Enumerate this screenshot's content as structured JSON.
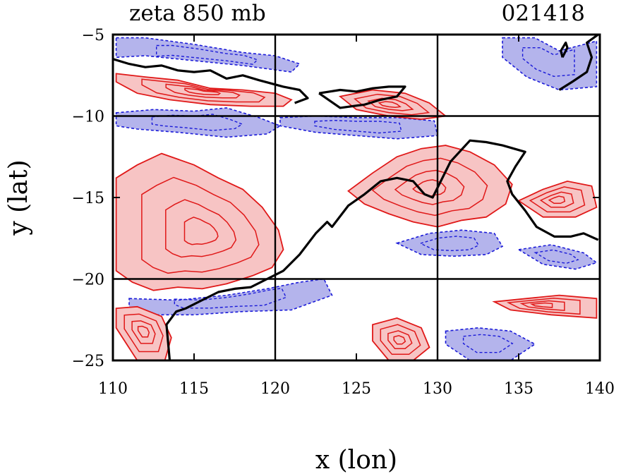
{
  "chart_data": {
    "type": "contour",
    "title": "zeta 850 mb",
    "time_label": "021418",
    "xlabel": "x (lon)",
    "ylabel": "y (lat)",
    "xlim": [
      110,
      140
    ],
    "ylim": [
      -25,
      -5
    ],
    "x_ticks": [
      "110",
      "115",
      "120",
      "125",
      "130",
      "135",
      "140"
    ],
    "y_ticks": [
      "-5",
      "-10",
      "-15",
      "-20",
      "-25"
    ],
    "gridlines_x": [
      120,
      130
    ],
    "gridlines_y": [
      -10,
      -20
    ],
    "colors": {
      "positive_fill": "#f7c4c4",
      "positive_contour": "#e01818",
      "negative_fill": "#b4b4ec",
      "negative_contour": "#1a1ad8",
      "coastline": "#000000"
    },
    "positive_regions": [
      {
        "lon": [
          110.2,
          111.5,
          113,
          115,
          116.5,
          118,
          119.2,
          120.2,
          120.5,
          119.8,
          118.6,
          117,
          115.5,
          114,
          112.5,
          111.2,
          110.2
        ],
        "lat": [
          -13.8,
          -13,
          -12.3,
          -13,
          -13.8,
          -14.5,
          -15.6,
          -17,
          -18.2,
          -19.3,
          -19.8,
          -20.3,
          -20.6,
          -20.5,
          -20.7,
          -20.2,
          -19.5
        ]
      },
      {
        "lon": [
          124.5,
          126,
          127.5,
          129,
          130.5,
          132,
          133.5,
          134.6,
          134.2,
          133,
          131.5,
          130,
          128.5,
          127,
          125.5,
          124.5
        ],
        "lat": [
          -14.6,
          -13.5,
          -12.5,
          -12.0,
          -11.8,
          -12.2,
          -13.0,
          -14.2,
          -15.4,
          -16.2,
          -16.4,
          -16.8,
          -16.5,
          -16.0,
          -15.4,
          -14.6
        ]
      },
      {
        "lon": [
          110.2,
          112,
          114,
          116,
          118,
          120,
          121,
          120.5,
          118.5,
          116,
          113.5,
          111.5,
          110.2
        ],
        "lat": [
          -7.4,
          -7.6,
          -7.8,
          -8.3,
          -8.4,
          -8.6,
          -9.0,
          -9.4,
          -9.4,
          -9.3,
          -9.0,
          -8.6,
          -7.9
        ]
      },
      {
        "lon": [
          124,
          126,
          128,
          129.5,
          130.5,
          129,
          127,
          125,
          124
        ],
        "lat": [
          -8.8,
          -8.4,
          -8.6,
          -9.2,
          -10.0,
          -10.2,
          -10.0,
          -9.6,
          -8.8
        ]
      },
      {
        "lon": [
          135,
          136.5,
          138,
          139.5,
          139.8,
          138.5,
          136.5,
          135
        ],
        "lat": [
          -15.2,
          -14.5,
          -14.0,
          -14.3,
          -15.6,
          -16.2,
          -16.2,
          -15.2
        ]
      },
      {
        "lon": [
          110.2,
          111.5,
          113,
          113.6,
          113.2,
          111.5,
          110.2
        ],
        "lat": [
          -21.8,
          -21.7,
          -22.3,
          -23.6,
          -25.0,
          -25.0,
          -23.0
        ]
      },
      {
        "lon": [
          126,
          127.5,
          129,
          129.5,
          128.5,
          127,
          126
        ],
        "lat": [
          -22.8,
          -22.4,
          -23.0,
          -24.2,
          -25.0,
          -25.0,
          -23.8
        ]
      },
      {
        "lon": [
          133.5,
          135.5,
          137.5,
          139.8,
          139.8,
          137,
          134.5,
          133.5
        ],
        "lat": [
          -21.4,
          -21.2,
          -21.0,
          -21.2,
          -22.4,
          -22.2,
          -21.9,
          -21.4
        ]
      }
    ],
    "negative_regions": [
      {
        "lon": [
          110.2,
          112,
          115,
          118,
          120,
          121.5,
          121,
          118,
          115,
          112,
          110.2
        ],
        "lat": [
          -5.2,
          -5.2,
          -5.6,
          -6.1,
          -6.3,
          -6.8,
          -7.3,
          -6.9,
          -6.6,
          -6.3,
          -6.4
        ]
      },
      {
        "lon": [
          110.2,
          112.5,
          115,
          117,
          119,
          120.3,
          119.5,
          117,
          114,
          111.5,
          110.2
        ],
        "lat": [
          -9.8,
          -9.6,
          -9.7,
          -9.5,
          -10.1,
          -10.6,
          -11.1,
          -11.3,
          -11.0,
          -10.8,
          -10.6
        ]
      },
      {
        "lon": [
          120.3,
          122.5,
          125,
          127.5,
          129.8,
          130,
          127.5,
          125,
          122.5,
          120.3
        ],
        "lat": [
          -10.1,
          -10.0,
          -10.1,
          -10.1,
          -10.3,
          -11.2,
          -11.4,
          -11.2,
          -11.0,
          -10.6
        ]
      },
      {
        "lon": [
          134,
          136,
          137.5,
          139.8,
          139.8,
          137.5,
          135.5,
          134
        ],
        "lat": [
          -5.2,
          -5.2,
          -6.0,
          -5.4,
          -8.2,
          -8.4,
          -7.6,
          -6.4
        ]
      },
      {
        "lon": [
          111,
          114,
          117,
          119.5,
          121.5,
          123,
          123.5,
          121,
          118,
          115,
          112,
          111
        ],
        "lat": [
          -21.2,
          -21.3,
          -21.0,
          -20.6,
          -20.2,
          -20.0,
          -21.0,
          -21.9,
          -22.0,
          -22.2,
          -22.2,
          -21.8
        ]
      },
      {
        "lon": [
          127.5,
          129.5,
          131.5,
          133.5,
          134,
          133,
          131,
          129,
          127.5
        ],
        "lat": [
          -17.8,
          -17.2,
          -17.0,
          -17.2,
          -18.0,
          -18.5,
          -18.6,
          -18.5,
          -17.8
        ]
      },
      {
        "lon": [
          130.5,
          132.5,
          134.5,
          136,
          134.5,
          132,
          130.5
        ],
        "lat": [
          -23.2,
          -23.0,
          -23.2,
          -24.0,
          -25.0,
          -25.0,
          -24.0
        ]
      },
      {
        "lon": [
          135,
          137,
          139,
          139.8,
          138.5,
          136.5,
          135
        ],
        "lat": [
          -18.2,
          -17.9,
          -18.4,
          -19.0,
          -19.4,
          -19.1,
          -18.2
        ]
      }
    ],
    "coastlines": [
      {
        "lon": [
          110,
          111,
          112,
          113,
          114,
          115,
          116,
          117,
          118,
          119,
          120.5,
          121.5,
          122,
          121.2
        ],
        "lat": [
          -6.5,
          -6.8,
          -7.0,
          -6.9,
          -7.2,
          -7.3,
          -7.2,
          -7.7,
          -7.5,
          -7.8,
          -8.2,
          -8.4,
          -8.9,
          -9.2
        ]
      },
      {
        "lon": [
          122.7,
          124,
          125,
          126,
          127,
          128,
          127.5,
          126.5,
          125.5,
          124,
          122.7
        ],
        "lat": [
          -8.6,
          -8.4,
          -8.5,
          -8.3,
          -8.2,
          -8.2,
          -8.8,
          -9.0,
          -9.3,
          -9.5,
          -8.6
        ]
      },
      {
        "lon": [
          113.5,
          113.3,
          113.9,
          114.5,
          115.5,
          116.5,
          117.5,
          118.5,
          119.5,
          120.5,
          121.5,
          122.5,
          123.2,
          123.5,
          124.5,
          125.5,
          126.5,
          127.5,
          128.5,
          129.2,
          129.7,
          130.2,
          130.8,
          132,
          133,
          134,
          135.4,
          134.8,
          134.3,
          134.6,
          135.4,
          136.1,
          137.2,
          138.2,
          139,
          139.9
        ],
        "lat": [
          -25,
          -22.8,
          -22.0,
          -21.8,
          -21.3,
          -20.8,
          -20.6,
          -20.5,
          -20.0,
          -19.5,
          -18.5,
          -17.2,
          -16.5,
          -16.8,
          -15.5,
          -14.8,
          -14.0,
          -13.8,
          -14.0,
          -14.8,
          -15.0,
          -14.0,
          -12.8,
          -11.5,
          -11.6,
          -11.8,
          -12.2,
          -13.1,
          -14.0,
          -14.8,
          -15.8,
          -16.8,
          -17.4,
          -17.4,
          -17.2,
          -17.6
        ]
      },
      {
        "lon": [
          137.7,
          138.0,
          137.9,
          137.6,
          137.7
        ],
        "lat": [
          -6.4,
          -5.8,
          -5.5,
          -6.0,
          -6.4
        ]
      },
      {
        "lon": [
          137.5,
          138.3,
          139.2,
          139.5,
          139.2,
          139.9
        ],
        "lat": [
          -8.4,
          -7.9,
          -7.3,
          -6.4,
          -5.5,
          -5.0
        ]
      }
    ]
  }
}
